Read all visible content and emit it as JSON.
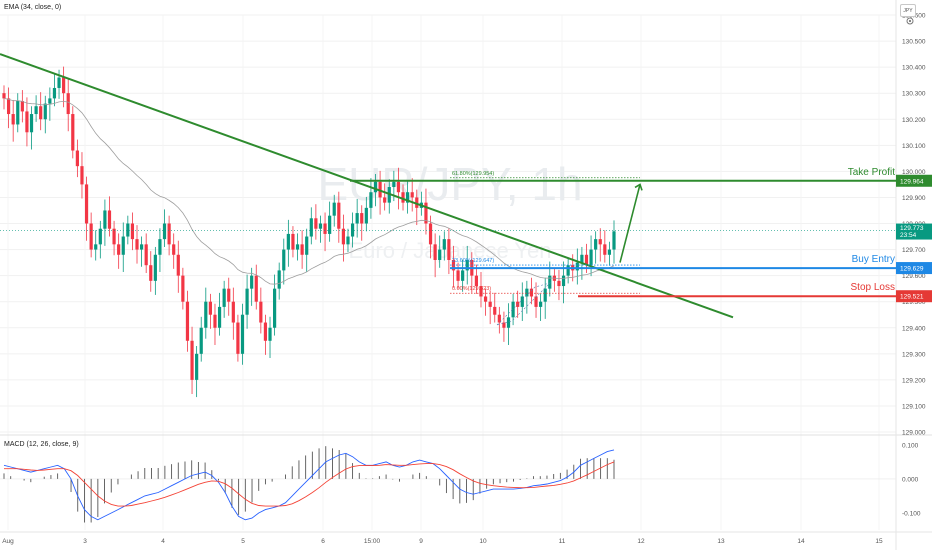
{
  "indicators": {
    "ema_label": "EMA (34, close, 0)",
    "macd_label": "MACD (12, 26, close, 9)"
  },
  "currency": "JPY",
  "watermark": {
    "symbol": "EUR/JPY, 1h",
    "name": "Euro / Japanese Yen"
  },
  "colors": {
    "up": "#089981",
    "down": "#f23645",
    "trendline": "#2e8b2e",
    "take_profit": "#2e8b2e",
    "buy_entry": "#1e88e5",
    "stop_loss": "#e53935",
    "ema": "#9e9e9e",
    "macd_line": "#2962ff",
    "signal_line": "#f44336"
  },
  "chart_data": [
    {
      "type": "candlestick",
      "title": "",
      "ylim": [
        129.0,
        130.6
      ],
      "price_ticks": [
        "130.600",
        "130.500",
        "130.400",
        "130.300",
        "130.200",
        "130.100",
        "130.000",
        "129.900",
        "129.800",
        "129.700",
        "129.600",
        "129.500",
        "129.400",
        "129.300",
        "129.200",
        "129.100",
        "129.000"
      ],
      "time_labels": [
        "Aug",
        "3",
        "4",
        "5",
        "6",
        "15:00",
        "9",
        "10",
        "11",
        "12",
        "13",
        "14",
        "15"
      ],
      "current_price": {
        "value": "129.773",
        "countdown": "23:54"
      },
      "levels": [
        {
          "name": "Take Profit",
          "price": "129.964",
          "value": 129.964,
          "fib_label": "61.80%(129.954)",
          "role": "take_profit"
        },
        {
          "name": "Buy Entry",
          "price": "129.629",
          "value": 129.629,
          "fib_label": "23.60%(129.647)",
          "role": "buy_entry"
        },
        {
          "name": "Stop Loss",
          "price": "129.521",
          "value": 129.521,
          "fib_label": "0.00%(129.523)",
          "role": "stop_loss"
        }
      ],
      "candles_close": [
        130.28,
        130.22,
        130.18,
        130.27,
        130.23,
        130.15,
        130.22,
        130.25,
        130.2,
        130.26,
        130.28,
        130.32,
        130.36,
        130.3,
        130.22,
        130.08,
        130.02,
        129.95,
        129.8,
        129.7,
        129.72,
        129.78,
        129.85,
        129.78,
        129.72,
        129.68,
        129.75,
        129.8,
        129.74,
        129.7,
        129.72,
        129.64,
        129.58,
        129.68,
        129.74,
        129.8,
        129.72,
        129.68,
        129.6,
        129.5,
        129.35,
        129.2,
        129.3,
        129.4,
        129.5,
        129.45,
        129.4,
        129.48,
        129.55,
        129.5,
        129.42,
        129.3,
        129.45,
        129.55,
        129.6,
        129.5,
        129.42,
        129.35,
        129.4,
        129.55,
        129.62,
        129.7,
        129.76,
        129.7,
        129.72,
        129.68,
        129.75,
        129.82,
        129.78,
        129.8,
        129.76,
        129.83,
        129.88,
        129.78,
        129.72,
        129.75,
        129.8,
        129.84,
        129.8,
        129.86,
        129.92,
        129.96,
        129.9,
        129.88,
        129.94,
        129.96,
        129.92,
        129.88,
        129.92,
        129.9,
        129.86,
        129.88,
        129.8,
        129.72,
        129.66,
        129.7,
        129.74,
        129.66,
        129.62,
        129.58,
        129.62,
        129.66,
        129.6,
        129.56,
        129.52,
        129.5,
        129.48,
        129.45,
        129.42,
        129.4,
        129.44,
        129.5,
        129.48,
        129.52,
        129.55,
        129.52,
        129.48,
        129.5,
        129.55,
        129.6,
        129.58,
        129.56,
        129.6,
        129.64,
        129.62,
        129.65,
        129.68,
        129.64,
        129.7,
        129.74,
        129.72,
        129.68,
        129.7,
        129.77
      ],
      "trendline": [
        {
          "x": "Aug",
          "y": 130.45
        },
        {
          "x": "13",
          "y": 129.44
        }
      ],
      "projection": [
        {
          "x": "11",
          "y": 129.65
        },
        {
          "x": "12",
          "y": 129.95
        }
      ]
    },
    {
      "type": "line",
      "title": "",
      "ylim": [
        -0.15,
        0.12
      ],
      "ticks": [
        "0.100",
        "0.000",
        "-0.100"
      ],
      "series": [
        {
          "name": "MACD",
          "values": [
            0.04,
            0.035,
            0.03,
            0.025,
            0.02,
            0.025,
            0.03,
            0.035,
            0.04,
            0.03,
            0.0,
            -0.05,
            -0.09,
            -0.11,
            -0.12,
            -0.11,
            -0.1,
            -0.09,
            -0.08,
            -0.07,
            -0.06,
            -0.05,
            -0.045,
            -0.04,
            -0.03,
            -0.02,
            -0.01,
            0.0,
            0.01,
            0.015,
            0.02,
            0.01,
            -0.01,
            -0.04,
            -0.08,
            -0.11,
            -0.12,
            -0.115,
            -0.1,
            -0.09,
            -0.085,
            -0.08,
            -0.07,
            -0.05,
            -0.03,
            -0.01,
            0.01,
            0.03,
            0.05,
            0.06,
            0.07,
            0.075,
            0.065,
            0.05,
            0.04,
            0.04,
            0.045,
            0.05,
            0.04,
            0.035,
            0.04,
            0.05,
            0.055,
            0.05,
            0.045,
            0.03,
            0.01,
            -0.01,
            -0.03,
            -0.04,
            -0.045,
            -0.04,
            -0.035,
            -0.03,
            -0.03,
            -0.03,
            -0.03,
            -0.028,
            -0.025,
            -0.02,
            -0.018,
            -0.015,
            -0.01,
            -0.005,
            0.005,
            0.02,
            0.04,
            0.05,
            0.06,
            0.07,
            0.08,
            0.085
          ]
        },
        {
          "name": "Signal",
          "values": [
            0.03,
            0.03,
            0.03,
            0.028,
            0.026,
            0.025,
            0.026,
            0.028,
            0.03,
            0.03,
            0.024,
            0.01,
            -0.01,
            -0.03,
            -0.05,
            -0.065,
            -0.075,
            -0.08,
            -0.08,
            -0.078,
            -0.074,
            -0.07,
            -0.065,
            -0.06,
            -0.054,
            -0.047,
            -0.04,
            -0.032,
            -0.024,
            -0.016,
            -0.01,
            -0.006,
            -0.007,
            -0.014,
            -0.027,
            -0.044,
            -0.06,
            -0.072,
            -0.078,
            -0.08,
            -0.08,
            -0.08,
            -0.078,
            -0.073,
            -0.064,
            -0.053,
            -0.04,
            -0.026,
            -0.01,
            0.004,
            0.017,
            0.029,
            0.036,
            0.039,
            0.039,
            0.039,
            0.04,
            0.042,
            0.041,
            0.04,
            0.04,
            0.042,
            0.044,
            0.045,
            0.045,
            0.042,
            0.036,
            0.027,
            0.015,
            0.004,
            -0.006,
            -0.013,
            -0.017,
            -0.02,
            -0.022,
            -0.024,
            -0.025,
            -0.026,
            -0.026,
            -0.025,
            -0.023,
            -0.021,
            -0.019,
            -0.016,
            -0.012,
            -0.006,
            0.003,
            0.012,
            0.022,
            0.032,
            0.042,
            0.05
          ]
        }
      ]
    }
  ]
}
